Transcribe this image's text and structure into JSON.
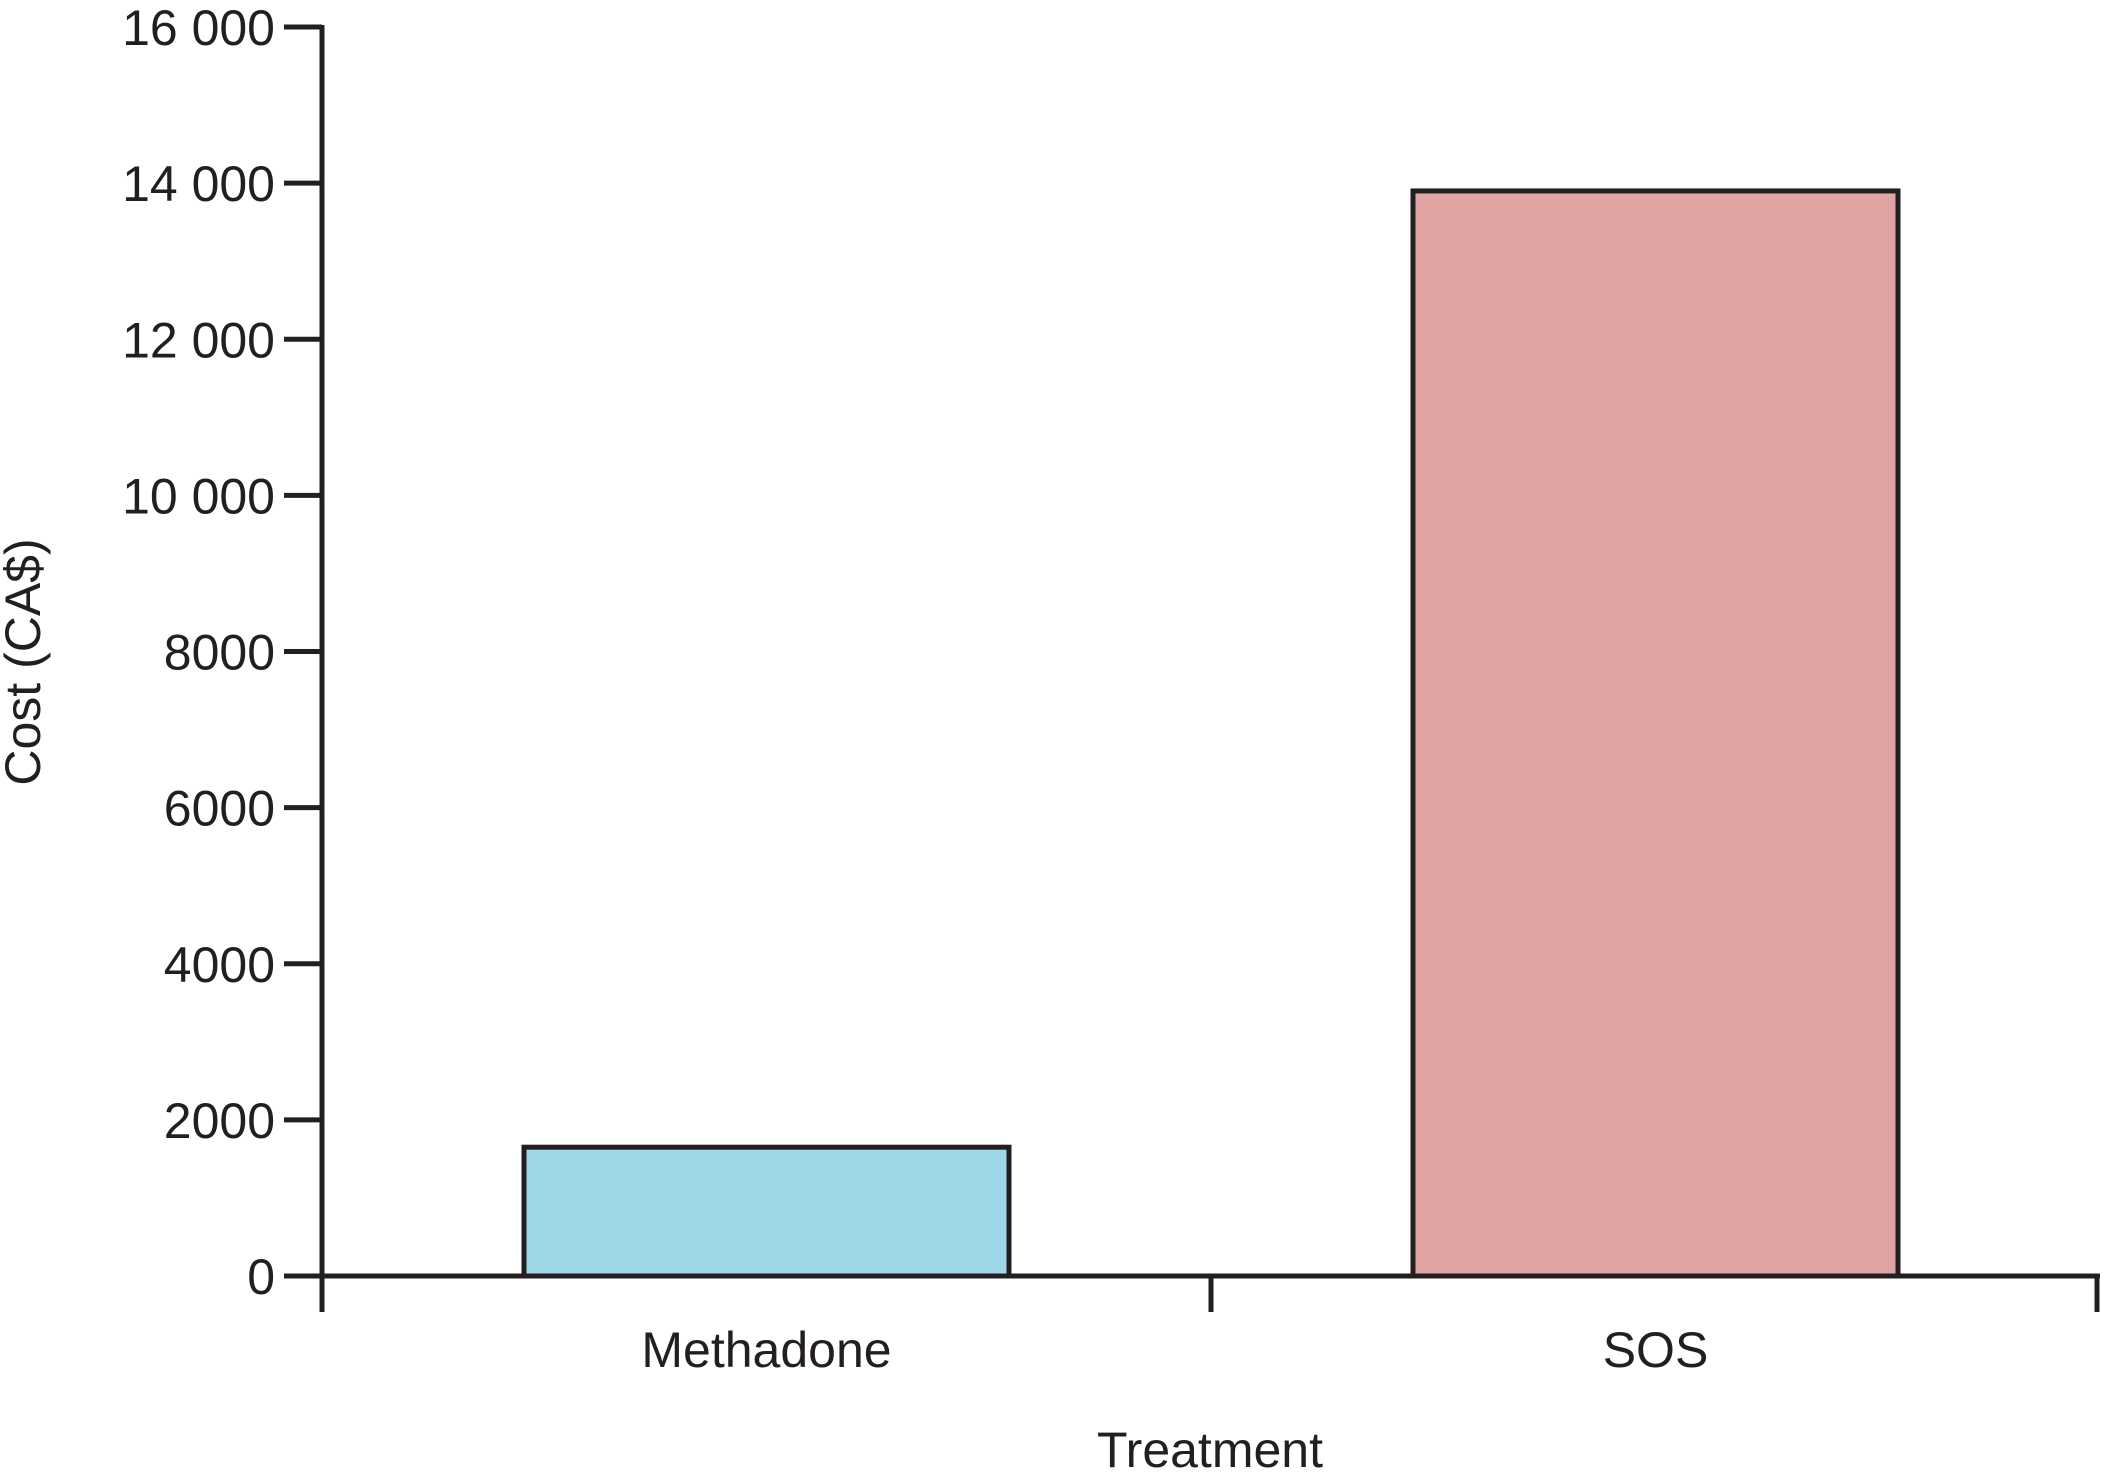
{
  "chart_data": {
    "type": "bar",
    "title": "",
    "xlabel": "Treatment",
    "ylabel": "Cost (CA$)",
    "categories": [
      "Methadone",
      "SOS"
    ],
    "values": [
      1650,
      13900
    ],
    "ylim": [
      0,
      16000
    ],
    "yticks": [
      0,
      2000,
      4000,
      6000,
      8000,
      10000,
      12000,
      14000,
      16000
    ],
    "ytick_labels": [
      "0",
      "2000",
      "4000",
      "6000",
      "8000",
      "10 000",
      "12 000",
      "14 000",
      "16 000"
    ],
    "colors": [
      "#9dd7e8",
      "#e0a5a3"
    ],
    "grid": false,
    "legend": "none"
  }
}
